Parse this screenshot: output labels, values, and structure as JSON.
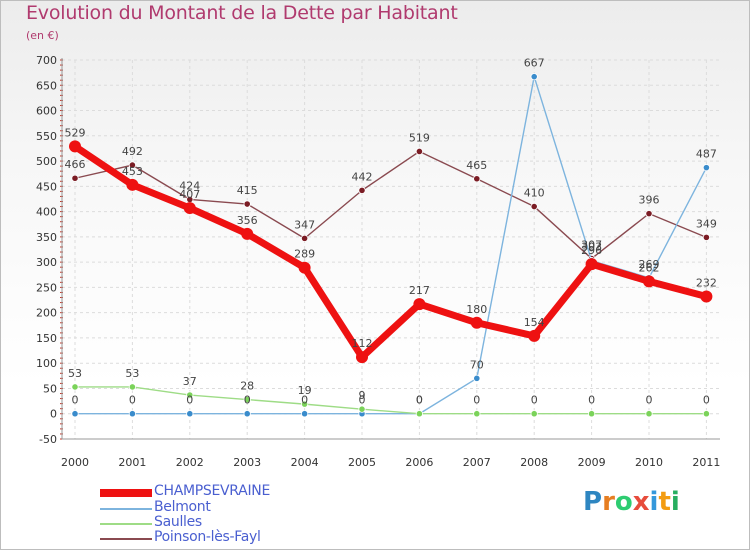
{
  "header": {
    "title": "Evolution du Montant de la Dette par Habitant",
    "subtitle": "(en €)"
  },
  "logo": {
    "letters": [
      "P",
      "r",
      "o",
      "x",
      "i",
      "t",
      "i"
    ],
    "colors": [
      "#2e86c1",
      "#e67e22",
      "#2ecc71",
      "#e74c3c",
      "#3498db",
      "#f39c12",
      "#27ae60"
    ]
  },
  "chart_data": {
    "type": "line",
    "x": [
      "2000",
      "2001",
      "2002",
      "2003",
      "2004",
      "2005",
      "2006",
      "2007",
      "2008",
      "2009",
      "2010",
      "2011"
    ],
    "ylim": [
      -50,
      700
    ],
    "yticks": [
      "-50",
      "0",
      "50",
      "100",
      "150",
      "200",
      "250",
      "300",
      "350",
      "400",
      "450",
      "500",
      "550",
      "600",
      "650",
      "700"
    ],
    "grid": true,
    "legend_position": "bottom-left",
    "series": [
      {
        "name": "Poinson-lès-Fayl",
        "color": "#7b1c24",
        "line_color": "#8a4a50",
        "values": [
          466,
          492,
          424,
          415,
          347,
          442,
          519,
          465,
          410,
          307,
          396,
          349
        ],
        "labels": [
          "466",
          "492",
          "424",
          "415",
          "347",
          "442",
          "519",
          "465",
          "410",
          "307",
          "396",
          "349"
        ]
      },
      {
        "name": "Belmont",
        "color": "#3a8ccc",
        "line_color": "#7db4de",
        "values": [
          0,
          0,
          0,
          0,
          0,
          0,
          0,
          70,
          667,
          303,
          269,
          487
        ],
        "labels": [
          "0",
          "0",
          "0",
          "0",
          "0",
          "0",
          "0",
          "70",
          "667",
          "303",
          "269",
          "487"
        ]
      },
      {
        "name": "Saulles",
        "color": "#7bd35a",
        "line_color": "#9edc86",
        "values": [
          53,
          53,
          37,
          28,
          19,
          9,
          0,
          0,
          0,
          0,
          0,
          0
        ],
        "labels": [
          "53",
          "53",
          "37",
          "28",
          "19",
          "9",
          "0",
          "0",
          "0",
          "0",
          "0",
          "0"
        ]
      },
      {
        "name": "CHAMPSEVRAINE",
        "color": "#ee1111",
        "line_color": "#ee1111",
        "values": [
          529,
          453,
          407,
          356,
          289,
          112,
          217,
          180,
          154,
          296,
          262,
          232
        ],
        "labels": [
          "529",
          "453",
          "407",
          "356",
          "289",
          "112",
          "217",
          "180",
          "154",
          "296",
          "262",
          "232"
        ]
      }
    ]
  },
  "legend": {
    "items": [
      {
        "label": "CHAMPSEVRAINE",
        "color": "#ee1111",
        "thickness": "8"
      },
      {
        "label": "Belmont",
        "color": "#7db4de",
        "thickness": "2"
      },
      {
        "label": "Saulles",
        "color": "#9edc86",
        "thickness": "2"
      },
      {
        "label": "Poinson-lès-Fayl",
        "color": "#8a4a50",
        "thickness": "2"
      }
    ]
  }
}
